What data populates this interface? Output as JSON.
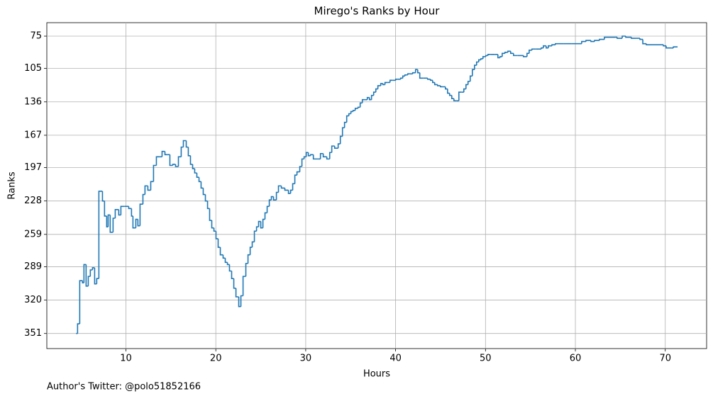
{
  "chart_data": {
    "type": "step",
    "title": "Mirego's Ranks by Hour",
    "xlabel": "Hours",
    "ylabel": "Ranks",
    "footnote": "Author's Twitter: @polo51852166",
    "color": "#1f77b4",
    "grid": true,
    "y_inverted": true,
    "xlim": [
      1.2,
      74.6
    ],
    "ylim": [
      365,
      62.5
    ],
    "xticks": [
      10,
      20,
      30,
      40,
      50,
      60,
      70
    ],
    "yticks": [
      75,
      105,
      136,
      167,
      197,
      228,
      259,
      289,
      320,
      351
    ],
    "x": [
      4.46,
      4.62,
      4.86,
      5.17,
      5.33,
      5.57,
      5.81,
      6.04,
      6.28,
      6.52,
      6.75,
      6.99,
      7.39,
      7.62,
      7.86,
      8.02,
      8.25,
      8.57,
      8.81,
      9.2,
      9.44,
      9.83,
      10.31,
      10.62,
      10.78,
      11.1,
      11.33,
      11.57,
      11.89,
      12.12,
      12.44,
      12.76,
      13.07,
      13.39,
      13.78,
      14.02,
      14.34,
      14.65,
      14.89,
      15.21,
      15.52,
      15.84,
      16.15,
      16.39,
      16.71,
      16.94,
      17.18,
      17.42,
      17.65,
      17.89,
      18.13,
      18.36,
      18.6,
      18.84,
      19.08,
      19.31,
      19.55,
      19.79,
      20.02,
      20.26,
      20.5,
      20.81,
      21.05,
      21.29,
      21.52,
      21.76,
      22.0,
      22.24,
      22.55,
      22.79,
      23.03,
      23.34,
      23.58,
      23.82,
      24.05,
      24.29,
      24.53,
      24.76,
      25.0,
      25.24,
      25.47,
      25.71,
      25.95,
      26.18,
      26.42,
      26.74,
      26.97,
      27.29,
      27.68,
      28.08,
      28.32,
      28.55,
      28.79,
      29.03,
      29.34,
      29.58,
      29.82,
      30.06,
      30.29,
      30.53,
      30.85,
      31.4,
      31.64,
      31.95,
      32.35,
      32.67,
      32.9,
      33.22,
      33.61,
      33.85,
      34.09,
      34.32,
      34.56,
      34.8,
      35.03,
      35.27,
      35.51,
      35.82,
      36.06,
      36.3,
      36.61,
      36.85,
      37.09,
      37.32,
      37.56,
      37.8,
      38.03,
      38.35,
      38.59,
      38.82,
      39.14,
      39.38,
      39.69,
      40.01,
      40.24,
      40.56,
      40.8,
      41.04,
      41.35,
      41.59,
      41.9,
      42.22,
      42.46,
      42.69,
      43.09,
      43.56,
      43.88,
      44.12,
      44.35,
      44.67,
      44.99,
      45.3,
      45.54,
      45.78,
      46.01,
      46.25,
      46.49,
      46.8,
      47.04,
      47.35,
      47.59,
      47.83,
      48.06,
      48.3,
      48.54,
      48.78,
      49.01,
      49.25,
      49.49,
      49.72,
      50.04,
      50.28,
      50.59,
      51.07,
      51.38,
      51.62,
      51.86,
      52.17,
      52.49,
      52.8,
      53.12,
      53.59,
      54.22,
      54.62,
      54.86,
      55.17,
      55.65,
      56.2,
      56.44,
      56.75,
      56.99,
      57.39,
      57.78,
      58.1,
      58.73,
      59.6,
      60.55,
      60.7,
      61.18,
      61.73,
      62.13,
      62.68,
      63.23,
      64.42,
      64.65,
      65.21,
      65.6,
      66.23,
      66.78,
      67.18,
      67.5,
      67.89,
      68.6,
      69.79,
      70.1,
      70.66,
      70.9,
      71.37
    ],
    "values": [
      351,
      342,
      302,
      304,
      287,
      307,
      298,
      292,
      290,
      305,
      300,
      219,
      228,
      242,
      252,
      241,
      257,
      244,
      236,
      241,
      233,
      233,
      235,
      242,
      253,
      245,
      251,
      231,
      222,
      214,
      218,
      210,
      195,
      187,
      187,
      182,
      185,
      185,
      195,
      194,
      196,
      187,
      178,
      172,
      178,
      186,
      194,
      198,
      202,
      206,
      210,
      216,
      222,
      228,
      235,
      246,
      253,
      256,
      263,
      271,
      278,
      281,
      285,
      287,
      293,
      300,
      309,
      317,
      326,
      316,
      298,
      286,
      278,
      271,
      266,
      256,
      252,
      247,
      253,
      245,
      239,
      233,
      227,
      224,
      227,
      220,
      214,
      216,
      218,
      221,
      218,
      212,
      204,
      201,
      196,
      189,
      187,
      183,
      186,
      185,
      189,
      189,
      184,
      187,
      189,
      183,
      177,
      179,
      175,
      168,
      160,
      155,
      149,
      147,
      145,
      144,
      142,
      141,
      137,
      134,
      134,
      132,
      134,
      130,
      127,
      124,
      121,
      119,
      120,
      118,
      118,
      116,
      116,
      115,
      115,
      114,
      112,
      111,
      110,
      110,
      109,
      106,
      109,
      114,
      114,
      115,
      116,
      118,
      120,
      121,
      122,
      122,
      124,
      128,
      130,
      133,
      135,
      135,
      127,
      127,
      124,
      120,
      117,
      112,
      106,
      102,
      99,
      97,
      96,
      94,
      93,
      92,
      92,
      92,
      95,
      94,
      91,
      90,
      89,
      91,
      93,
      93,
      94,
      91,
      88,
      87,
      87,
      86,
      84,
      86,
      84,
      83,
      82,
      82,
      82,
      82,
      82,
      80,
      79,
      80,
      79,
      78,
      76,
      76,
      77,
      75,
      76,
      77,
      77,
      78,
      82,
      83,
      83,
      84,
      86,
      86,
      85,
      85
    ]
  }
}
